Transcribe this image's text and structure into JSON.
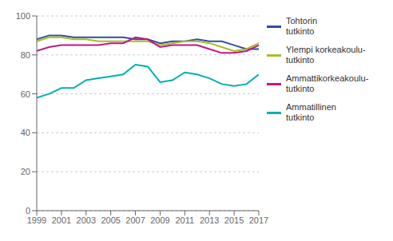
{
  "chart_data": {
    "type": "line",
    "x": [
      1999,
      2000,
      2001,
      2002,
      2003,
      2004,
      2005,
      2006,
      2007,
      2008,
      2009,
      2010,
      2011,
      2012,
      2013,
      2014,
      2015,
      2016,
      2017
    ],
    "series": [
      {
        "name": "Tohtorin\ntutkinto",
        "color": "#2E4FA0",
        "values": [
          88,
          90,
          90,
          89,
          89,
          89,
          89,
          89,
          88,
          88,
          86,
          87,
          87,
          88,
          87,
          87,
          85,
          83,
          83
        ]
      },
      {
        "name": "Ylempi korkeakoulu-\ntutkinto",
        "color": "#AABD22",
        "values": [
          87,
          89,
          89,
          88,
          88,
          87,
          87,
          87,
          87,
          87,
          85,
          86,
          87,
          87,
          86,
          84,
          82,
          83,
          86
        ]
      },
      {
        "name": "Ammattikorkeakoulu-\ntutkinto",
        "color": "#C0168A",
        "values": [
          82,
          84,
          85,
          85,
          85,
          85,
          86,
          86,
          89,
          88,
          84,
          85,
          85,
          85,
          83,
          81,
          81,
          82,
          85
        ]
      },
      {
        "name": "Ammatillinen\ntutkinto",
        "color": "#00B0B0",
        "values": [
          58,
          60,
          63,
          63,
          67,
          68,
          69,
          70,
          75,
          74,
          66,
          67,
          71,
          70,
          68,
          65,
          64,
          65,
          70
        ]
      }
    ],
    "xlim": [
      1999,
      2017
    ],
    "xticks": [
      1999,
      2001,
      2003,
      2005,
      2007,
      2009,
      2011,
      2013,
      2015,
      2017
    ],
    "ylim": [
      0,
      100
    ],
    "yticks": [
      0,
      20,
      40,
      60,
      80,
      100
    ],
    "grid": true,
    "legend": "right"
  }
}
